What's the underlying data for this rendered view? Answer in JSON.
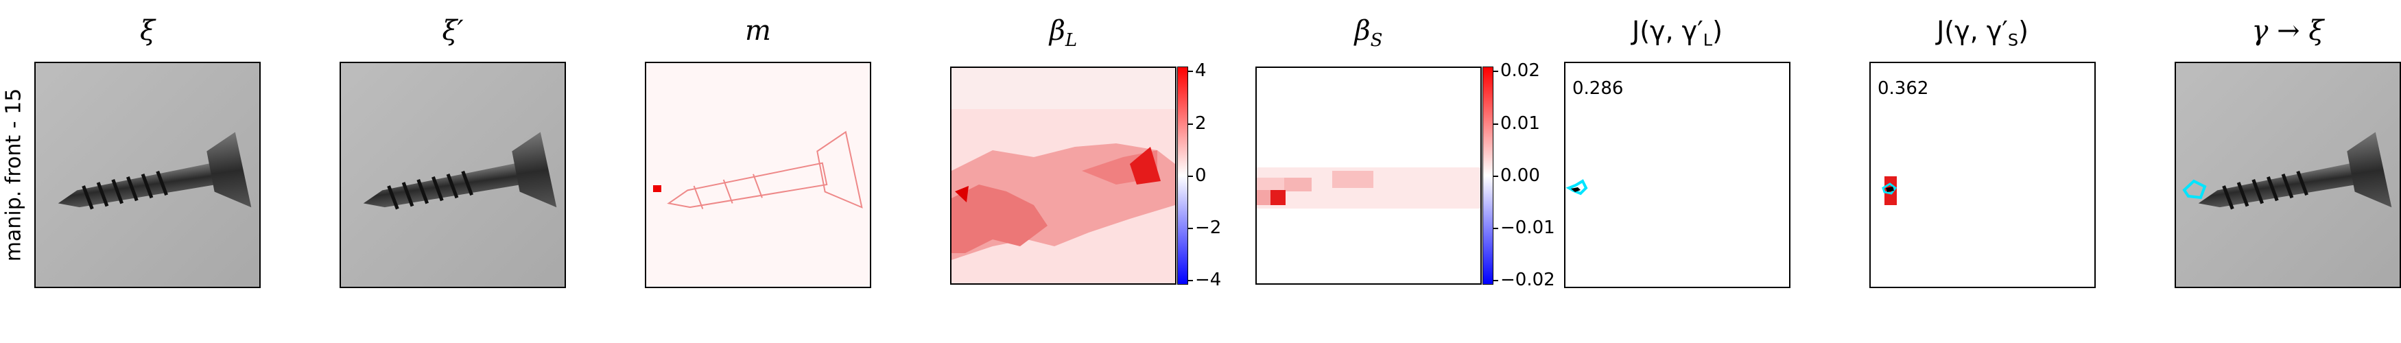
{
  "row_label": "manip. front - 15",
  "panels": {
    "xi": {
      "title": "ξ"
    },
    "xi_prime": {
      "title": "ξ′"
    },
    "m": {
      "title": "m"
    },
    "beta_L": {
      "title": "β",
      "subscript": "L",
      "colorbar_ticks": [
        "4",
        "2",
        "0",
        "−2",
        "−4"
      ]
    },
    "beta_S": {
      "title": "β",
      "subscript": "S",
      "colorbar_ticks": [
        "0.02",
        "0.01",
        "0.00",
        "−0.01",
        "−0.02"
      ]
    },
    "J_L": {
      "title": "J(γ, γ′",
      "subscript": "L",
      "title_end": ")",
      "score": "0.286"
    },
    "J_S": {
      "title": "J(γ, γ′",
      "subscript": "S",
      "title_end": ")",
      "score": "0.362"
    },
    "gamma_xi": {
      "title": "γ → ξ"
    }
  },
  "colors": {
    "red": "#ff0000",
    "blue": "#0000ff",
    "cyan": "#00e5ff"
  }
}
